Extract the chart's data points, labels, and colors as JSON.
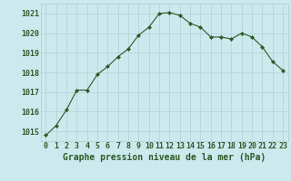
{
  "x": [
    0,
    1,
    2,
    3,
    4,
    5,
    6,
    7,
    8,
    9,
    10,
    11,
    12,
    13,
    14,
    15,
    16,
    17,
    18,
    19,
    20,
    21,
    22,
    23
  ],
  "y": [
    1014.8,
    1015.3,
    1016.1,
    1017.1,
    1017.1,
    1017.9,
    1018.3,
    1018.8,
    1019.2,
    1019.9,
    1020.3,
    1021.0,
    1021.05,
    1020.9,
    1020.5,
    1020.3,
    1019.8,
    1019.8,
    1019.7,
    1020.0,
    1019.8,
    1019.3,
    1018.55,
    1018.1
  ],
  "line_color": "#2d5a27",
  "marker": "D",
  "marker_size": 2.2,
  "bg_color": "#cce9ee",
  "grid_color": "#aacccc",
  "xlabel": "Graphe pression niveau de la mer (hPa)",
  "xlabel_fontsize": 7,
  "ylabel_ticks": [
    1015,
    1016,
    1017,
    1018,
    1019,
    1020,
    1021
  ],
  "xlim": [
    -0.5,
    23.5
  ],
  "ylim": [
    1014.5,
    1021.5
  ],
  "tick_fontsize": 6,
  "tick_color": "#2d5a27"
}
